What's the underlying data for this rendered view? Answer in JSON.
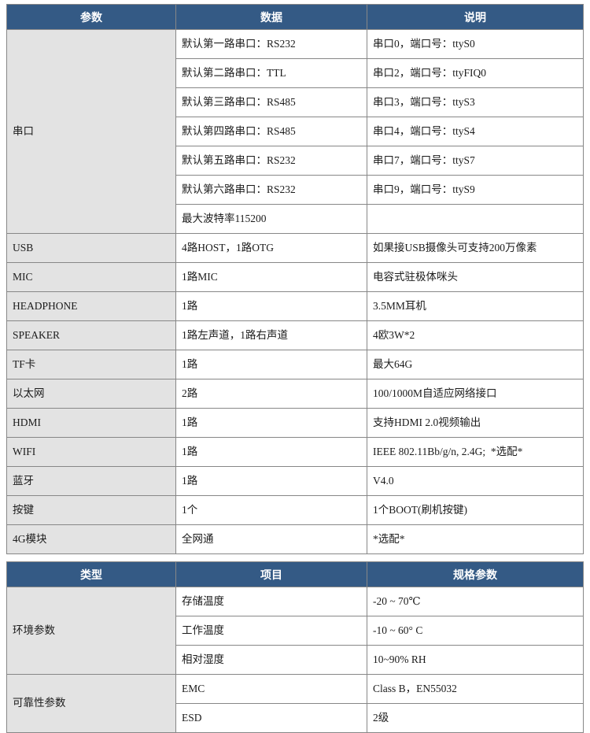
{
  "colors": {
    "header_bg": "#345a85",
    "header_fg": "#ffffff",
    "row_label_bg": "#e3e3e3",
    "border": "#878787",
    "text": "#1b1b1b"
  },
  "tables": [
    {
      "name": "接口参数表",
      "headers": [
        "参数",
        "数据",
        "说明"
      ],
      "rows": [
        {
          "param": "串口",
          "span": 7,
          "data": "默认第一路串口：RS232",
          "desc": "串口0，端口号：ttyS0"
        },
        {
          "data": "默认第二路串口：TTL",
          "desc": "串口2，端口号：ttyFIQ0"
        },
        {
          "data": "默认第三路串口：RS485",
          "desc": "串口3，端口号：ttyS3"
        },
        {
          "data": "默认第四路串口：RS485",
          "desc": "串口4，端口号：ttyS4"
        },
        {
          "data": "默认第五路串口：RS232",
          "desc": "串口7，端口号：ttyS7"
        },
        {
          "data": "默认第六路串口：RS232",
          "desc": "串口9，端口号：ttyS9"
        },
        {
          "data": "最大波特率115200",
          "desc": ""
        },
        {
          "param": "USB",
          "span": 1,
          "data": "4路HOST，1路OTG",
          "desc": "如果接USB摄像头可支持200万像素"
        },
        {
          "param": "MIC",
          "span": 1,
          "data": "1路MIC",
          "desc": "电容式驻极体咪头"
        },
        {
          "param": "HEADPHONE",
          "span": 1,
          "data": "1路",
          "desc": "3.5MM耳机"
        },
        {
          "param": "SPEAKER",
          "span": 1,
          "data": "1路左声道，1路右声道",
          "desc": "4欧3W*2"
        },
        {
          "param": "TF卡",
          "span": 1,
          "data": "1路",
          "desc": "最大64G"
        },
        {
          "param": "以太网",
          "span": 1,
          "data": "2路",
          "desc": "100/1000M自适应网络接口"
        },
        {
          "param": "HDMI",
          "span": 1,
          "data": "1路",
          "desc": "支持HDMI 2.0视频输出"
        },
        {
          "param": "WIFI",
          "span": 1,
          "data": "1路",
          "desc": "IEEE 802.11Bb/g/n, 2.4G;  *选配*"
        },
        {
          "param": "蓝牙",
          "span": 1,
          "data": "1路",
          "desc": "V4.0"
        },
        {
          "param": "按键",
          "span": 1,
          "data": "1个",
          "desc": "1个BOOT(刷机按键)"
        },
        {
          "param": "4G模块",
          "span": 1,
          "data": "全网通",
          "desc": "*选配*"
        }
      ]
    },
    {
      "name": "规格参数表",
      "headers": [
        "类型",
        "项目",
        "规格参数"
      ],
      "rows": [
        {
          "param": "环境参数",
          "span": 3,
          "data": "存储温度",
          "desc": "-20 ~ 70℃"
        },
        {
          "data": "工作温度",
          "desc": "-10 ~ 60° C"
        },
        {
          "data": "相对湿度",
          "desc": "10~90% RH"
        },
        {
          "param": "可靠性参数",
          "span": 2,
          "data": "EMC",
          "desc": "Class B，EN55032"
        },
        {
          "data": "ESD",
          "desc": "2级"
        }
      ]
    }
  ]
}
